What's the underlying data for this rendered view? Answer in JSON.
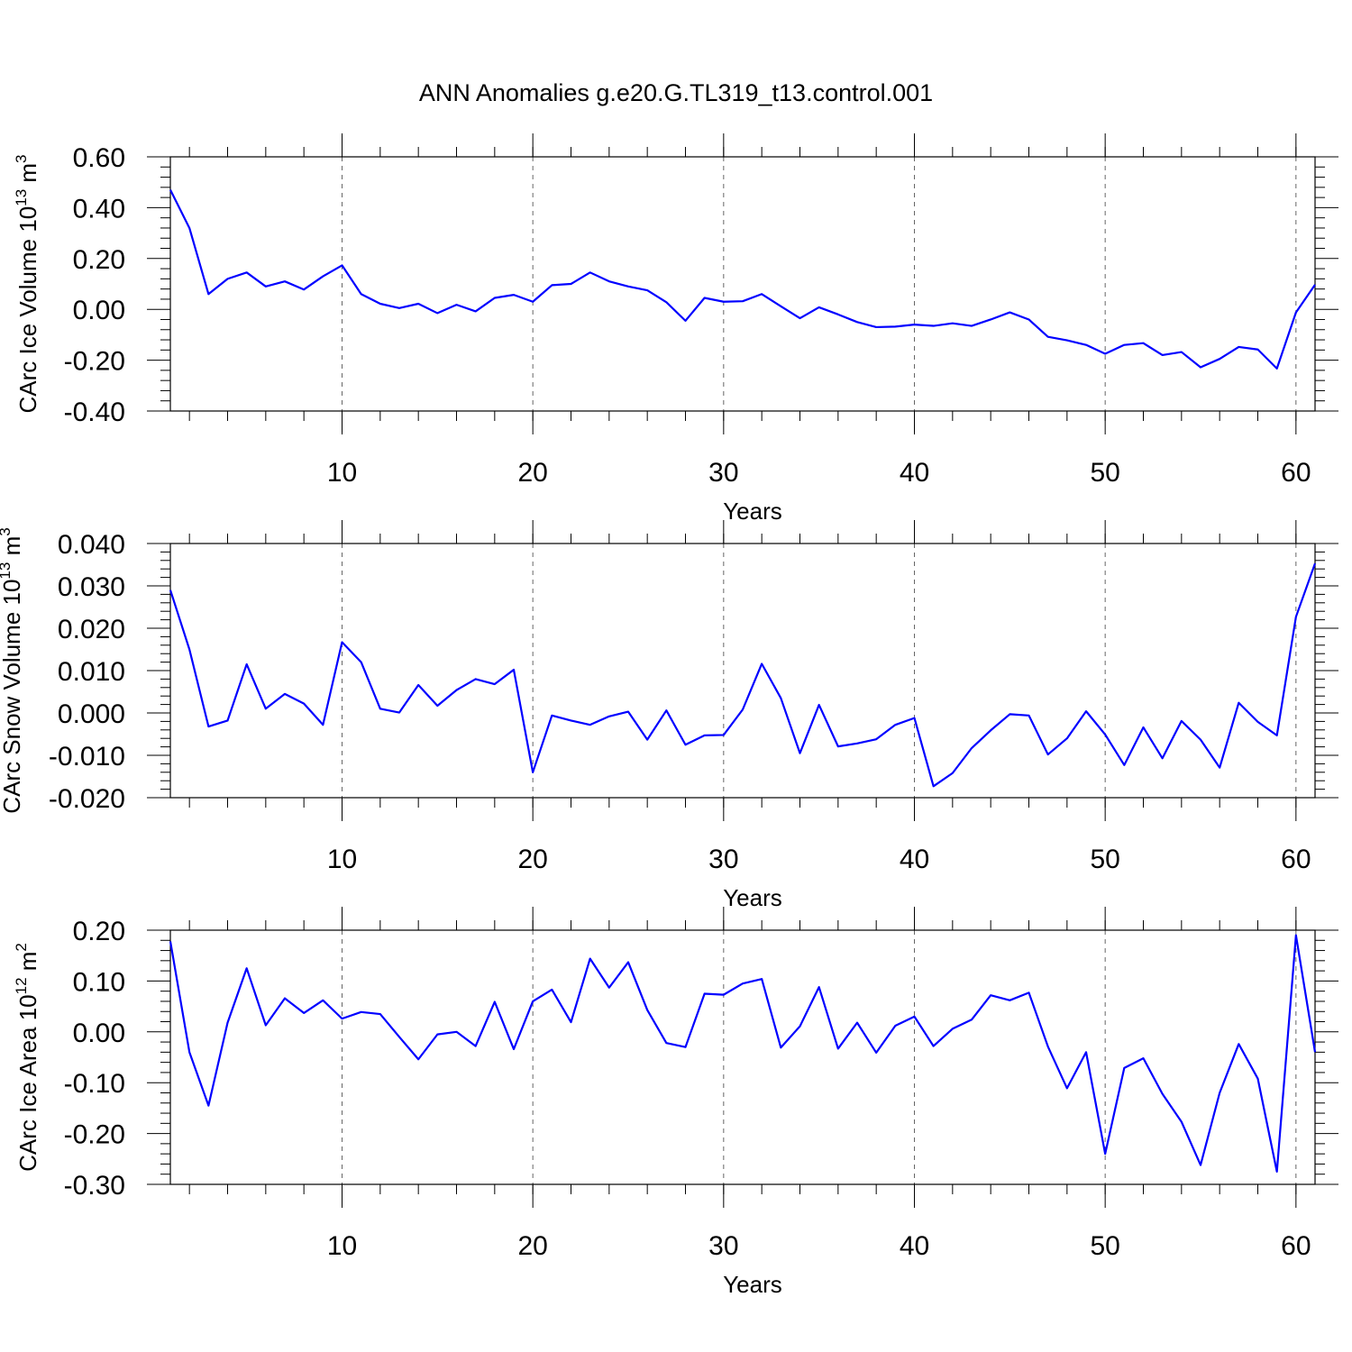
{
  "title": "ANN Anomalies g.e20.G.TL319_t13.control.001",
  "line_color": "#0000ff",
  "chart_data": [
    {
      "type": "line",
      "ylabel": "CArc Ice Volume 10",
      "ylabel_exp": "13",
      "ylabel_unit": " m",
      "ylabel_unit_exp": "3",
      "xlabel": "Years",
      "xlim": [
        1,
        61
      ],
      "ylim": [
        -0.4,
        0.6
      ],
      "xticks": [
        10,
        20,
        30,
        40,
        50,
        60
      ],
      "xtick_labels": [
        "10",
        "20",
        "30",
        "40",
        "50",
        "60"
      ],
      "yticks": [
        -0.4,
        -0.2,
        0.0,
        0.2,
        0.4,
        0.6
      ],
      "ytick_labels": [
        "-0.40",
        "-0.20",
        "0.00",
        "0.20",
        "0.40",
        "0.60"
      ],
      "grid": "dashed vertical at major x ticks",
      "x_start": 1,
      "values": [
        0.47,
        0.32,
        0.06,
        0.12,
        0.145,
        0.09,
        0.11,
        0.078,
        0.13,
        0.173,
        0.06,
        0.022,
        0.005,
        0.022,
        -0.015,
        0.018,
        -0.008,
        0.045,
        0.057,
        0.03,
        0.095,
        0.1,
        0.145,
        0.11,
        0.09,
        0.075,
        0.028,
        -0.045,
        0.045,
        0.03,
        0.032,
        0.06,
        0.012,
        -0.035,
        0.008,
        -0.02,
        -0.05,
        -0.07,
        -0.068,
        -0.06,
        -0.065,
        -0.055,
        -0.065,
        -0.04,
        -0.012,
        -0.04,
        -0.108,
        -0.122,
        -0.14,
        -0.175,
        -0.14,
        -0.133,
        -0.18,
        -0.168,
        -0.228,
        -0.195,
        -0.148,
        -0.158,
        -0.233,
        -0.012,
        0.097
      ]
    },
    {
      "type": "line",
      "ylabel": "CArc Snow Volume 10",
      "ylabel_exp": "13",
      "ylabel_unit": " m",
      "ylabel_unit_exp": "3",
      "xlabel": "Years",
      "xlim": [
        1,
        61
      ],
      "ylim": [
        -0.02,
        0.04
      ],
      "xticks": [
        10,
        20,
        30,
        40,
        50,
        60
      ],
      "xtick_labels": [
        "10",
        "20",
        "30",
        "40",
        "50",
        "60"
      ],
      "yticks": [
        -0.02,
        -0.01,
        0.0,
        0.01,
        0.02,
        0.03,
        0.04
      ],
      "ytick_labels": [
        "-0.020",
        "-0.010",
        "0.000",
        "0.010",
        "0.020",
        "0.030",
        "0.040"
      ],
      "grid": "dashed vertical at major x ticks",
      "x_start": 1,
      "values": [
        0.029,
        0.015,
        -0.0032,
        -0.0018,
        0.0115,
        0.001,
        0.0045,
        0.0022,
        -0.0028,
        0.0167,
        0.012,
        0.001,
        0.0001,
        0.0066,
        0.0017,
        0.0054,
        0.008,
        0.0068,
        0.0102,
        -0.014,
        -0.0006,
        -0.0018,
        -0.0028,
        -0.0008,
        0.0003,
        -0.0063,
        0.0006,
        -0.0075,
        -0.0053,
        -0.0052,
        0.0008,
        0.0116,
        0.0035,
        -0.0095,
        0.0019,
        -0.0079,
        -0.0072,
        -0.0062,
        -0.0028,
        -0.0012,
        -0.0173,
        -0.0142,
        -0.0083,
        -0.0041,
        -0.0003,
        -0.0006,
        -0.0098,
        -0.006,
        0.0004,
        -0.0051,
        -0.0123,
        -0.0034,
        -0.0107,
        -0.0019,
        -0.0063,
        -0.0129,
        0.0024,
        -0.0021,
        -0.0053,
        0.0227,
        0.0353
      ]
    },
    {
      "type": "line",
      "ylabel": "CArc Ice Area 10",
      "ylabel_exp": "12",
      "ylabel_unit": " m",
      "ylabel_unit_exp": "2",
      "xlabel": "Years",
      "xlim": [
        1,
        61
      ],
      "ylim": [
        -0.3,
        0.2
      ],
      "xticks": [
        10,
        20,
        30,
        40,
        50,
        60
      ],
      "xtick_labels": [
        "10",
        "20",
        "30",
        "40",
        "50",
        "60"
      ],
      "yticks": [
        -0.3,
        -0.2,
        -0.1,
        0.0,
        0.1,
        0.2
      ],
      "ytick_labels": [
        "-0.30",
        "-0.20",
        "-0.10",
        "0.00",
        "0.10",
        "0.20"
      ],
      "grid": "dashed vertical at major x ticks",
      "x_start": 1,
      "values": [
        0.178,
        -0.04,
        -0.145,
        0.018,
        0.125,
        0.013,
        0.066,
        0.037,
        0.062,
        0.026,
        0.039,
        0.035,
        -0.01,
        -0.054,
        -0.005,
        0.0,
        -0.028,
        0.059,
        -0.034,
        0.06,
        0.083,
        0.019,
        0.144,
        0.087,
        0.137,
        0.043,
        -0.022,
        -0.03,
        0.075,
        0.073,
        0.095,
        0.104,
        -0.031,
        0.011,
        0.088,
        -0.033,
        0.018,
        -0.041,
        0.012,
        0.03,
        -0.028,
        0.006,
        0.024,
        0.072,
        0.062,
        0.077,
        -0.029,
        -0.111,
        -0.04,
        -0.24,
        -0.071,
        -0.052,
        -0.122,
        -0.177,
        -0.262,
        -0.12,
        -0.024,
        -0.092,
        -0.275,
        0.19,
        -0.04
      ]
    }
  ]
}
